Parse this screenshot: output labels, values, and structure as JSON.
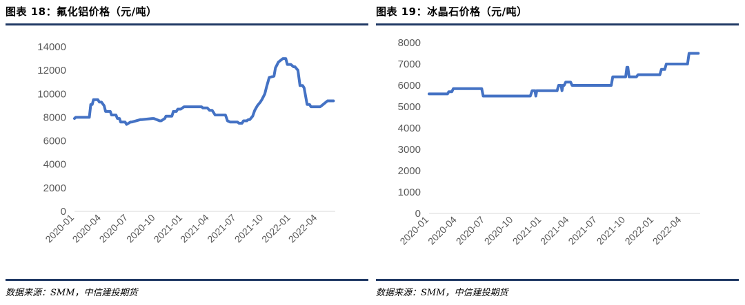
{
  "charts": [
    {
      "figure_label": "图表 18：",
      "title": "氟化铝价格（元/吨）",
      "source": "数据来源：SMM，中信建投期货",
      "line_color": "#4472c4",
      "chart_data": {
        "type": "line",
        "title": "氟化铝价格（元/吨）",
        "x_type": "date",
        "xlim": [
          "2020-01-01",
          "2022-05-31"
        ],
        "ylim": [
          0,
          14000
        ],
        "y_ticks": [
          0,
          2000,
          4000,
          6000,
          8000,
          10000,
          12000,
          14000
        ],
        "x_ticks": [
          "2020-01",
          "2020-04",
          "2020-07",
          "2020-10",
          "2021-01",
          "2021-04",
          "2021-07",
          "2021-10",
          "2022-01",
          "2022-04"
        ],
        "grid": false,
        "series": [
          {
            "x": [
              "2020-01-01",
              "2020-01-05",
              "2020-02-20",
              "2020-02-25",
              "2020-03-01",
              "2020-03-05",
              "2020-03-20",
              "2020-03-25",
              "2020-04-01",
              "2020-04-10",
              "2020-04-15",
              "2020-05-01",
              "2020-05-05",
              "2020-05-20",
              "2020-05-25",
              "2020-06-01",
              "2020-06-05",
              "2020-06-20",
              "2020-06-25",
              "2020-07-08",
              "2020-07-12",
              "2020-08-10",
              "2020-08-15",
              "2020-09-20",
              "2020-09-25",
              "2020-10-15",
              "2020-10-20",
              "2020-11-01",
              "2020-11-05",
              "2020-11-25",
              "2020-11-30",
              "2020-12-10",
              "2020-12-15",
              "2020-12-25",
              "2021-01-05",
              "2021-01-10",
              "2021-03-05",
              "2021-03-10",
              "2021-03-25",
              "2021-04-01",
              "2021-04-10",
              "2021-04-15",
              "2021-04-20",
              "2021-05-25",
              "2021-06-01",
              "2021-06-10",
              "2021-06-15",
              "2021-06-20",
              "2021-06-25",
              "2021-07-05",
              "2021-07-10",
              "2021-07-20",
              "2021-07-25",
              "2021-08-05",
              "2021-08-10",
              "2021-08-15",
              "2021-08-25",
              "2021-09-01",
              "2021-09-10",
              "2021-09-20",
              "2021-09-25",
              "2021-10-05",
              "2021-10-10",
              "2021-10-20",
              "2021-11-05",
              "2021-11-10",
              "2021-11-20",
              "2021-12-05",
              "2021-12-15",
              "2021-12-20",
              "2022-01-01",
              "2022-01-10",
              "2022-01-15",
              "2022-01-25",
              "2022-02-01",
              "2022-02-10",
              "2022-02-15",
              "2022-02-25",
              "2022-03-05",
              "2022-03-10",
              "2022-03-20",
              "2022-03-25",
              "2022-04-10",
              "2022-04-15",
              "2022-05-05",
              "2022-05-10",
              "2022-05-25"
            ],
            "y": [
              7900,
              8000,
              8000,
              9100,
              9100,
              9500,
              9500,
              9300,
              9300,
              9000,
              8500,
              8500,
              8200,
              8200,
              7900,
              7900,
              7600,
              7600,
              7400,
              7600,
              7600,
              7800,
              7800,
              7900,
              7900,
              7700,
              7700,
              7900,
              8100,
              8100,
              8500,
              8500,
              8700,
              8700,
              8900,
              8900,
              8900,
              8800,
              8800,
              8600,
              8600,
              8400,
              8200,
              8200,
              7700,
              7600,
              7600,
              7600,
              7600,
              7600,
              7500,
              7500,
              7700,
              7700,
              7800,
              7800,
              8100,
              8600,
              9000,
              9300,
              9500,
              10000,
              10500,
              11400,
              11500,
              12200,
              12700,
              13000,
              13000,
              12500,
              12500,
              12300,
              12300,
              12000,
              10700,
              10700,
              10500,
              9100,
              9100,
              8900,
              8900,
              8900,
              8900,
              9000,
              9400,
              9400,
              9400
            ]
          }
        ]
      }
    },
    {
      "figure_label": "图表 19：",
      "title": "冰晶石价格（元/吨）",
      "source": "数据来源：SMM，中信建投期货",
      "line_color": "#4472c4",
      "chart_data": {
        "type": "line",
        "title": "冰晶石价格（元/吨）",
        "x_type": "date",
        "xlim": [
          "2020-01-01",
          "2022-05-31"
        ],
        "ylim": [
          0,
          8000
        ],
        "y_ticks": [
          0,
          1000,
          2000,
          3000,
          4000,
          5000,
          6000,
          7000,
          8000
        ],
        "x_ticks": [
          "2020-01",
          "2020-04",
          "2020-07",
          "2020-10",
          "2021-01",
          "2021-04",
          "2021-07",
          "2021-10",
          "2022-01",
          "2022-04"
        ],
        "grid": false,
        "series": [
          {
            "x": [
              "2020-01-01",
              "2020-03-01",
              "2020-03-05",
              "2020-03-15",
              "2020-03-20",
              "2020-06-20",
              "2020-06-25",
              "2020-11-25",
              "2020-12-01",
              "2020-12-10",
              "2020-12-13",
              "2020-12-16",
              "2021-02-20",
              "2021-02-25",
              "2021-03-05",
              "2021-03-08",
              "2021-03-11",
              "2021-03-15",
              "2021-03-20",
              "2021-04-05",
              "2021-04-10",
              "2021-05-20",
              "2021-08-15",
              "2021-08-20",
              "2021-10-01",
              "2021-10-05",
              "2021-10-08",
              "2021-10-12",
              "2021-10-20",
              "2021-11-05",
              "2021-11-10",
              "2021-12-20",
              "2022-01-20",
              "2022-01-25",
              "2022-02-05",
              "2022-02-10",
              "2022-04-20",
              "2022-04-25",
              "2022-05-25"
            ],
            "y": [
              5600,
              5600,
              5700,
              5700,
              5850,
              5850,
              5500,
              5500,
              5750,
              5750,
              5500,
              5750,
              5750,
              6000,
              6000,
              5750,
              6000,
              6000,
              6150,
              6150,
              6000,
              6000,
              6000,
              6400,
              6400,
              6850,
              6850,
              6400,
              6400,
              6400,
              6500,
              6500,
              6500,
              6750,
              6750,
              7000,
              7000,
              7500,
              7500
            ]
          }
        ]
      }
    }
  ]
}
